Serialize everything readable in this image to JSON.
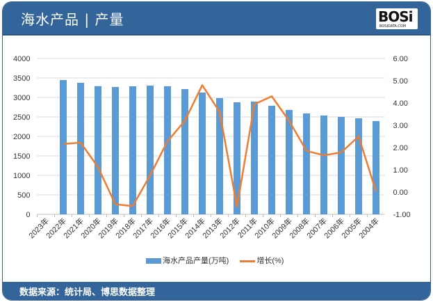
{
  "header": {
    "title": "海水产品 | 产量",
    "logo_text": "BOSi",
    "logo_sub": "BOSIDATA.COM"
  },
  "footer": {
    "source": "数据来源：统计局、博思数据整理"
  },
  "chart_data": {
    "type": "bar+line",
    "categories": [
      "2023年",
      "2022年",
      "2021年",
      "2020年",
      "2019年",
      "2018年",
      "2017年",
      "2016年",
      "2015年",
      "2014年",
      "2013年",
      "2012年",
      "2011年",
      "2010年",
      "2009年",
      "2008年",
      "2007年",
      "2006年",
      "2005年",
      "2004年"
    ],
    "series": [
      {
        "name": "海水产品产量(万吨)",
        "type": "bar",
        "axis": "left",
        "color": "#5b9bd5",
        "values": [
          null,
          3446,
          3375,
          3290,
          3268,
          3286,
          3304,
          3288,
          3214,
          3125,
          2982,
          2875,
          2893,
          2786,
          2679,
          2589,
          2536,
          2500,
          2464,
          2393
        ]
      },
      {
        "name": "增长(%)",
        "type": "line",
        "axis": "right",
        "color": "#ed7d31",
        "values": [
          null,
          2.16,
          2.22,
          1.12,
          -0.55,
          -0.63,
          0.75,
          2.28,
          3.2,
          4.8,
          3.6,
          -0.66,
          3.94,
          4.3,
          3.2,
          1.85,
          1.65,
          1.78,
          2.5,
          0.03
        ]
      }
    ],
    "y_left": {
      "range": [
        0,
        4000
      ],
      "ticks": [
        "0",
        "500",
        "1000",
        "1500",
        "2000",
        "2500",
        "3000",
        "3500",
        "4000"
      ]
    },
    "y_right": {
      "range": [
        -1,
        6
      ],
      "ticks": [
        "-1.00",
        "0.00",
        "1.00",
        "2.00",
        "3.00",
        "4.00",
        "5.00",
        "6.00"
      ]
    },
    "grid": true,
    "legend": "bottom"
  }
}
